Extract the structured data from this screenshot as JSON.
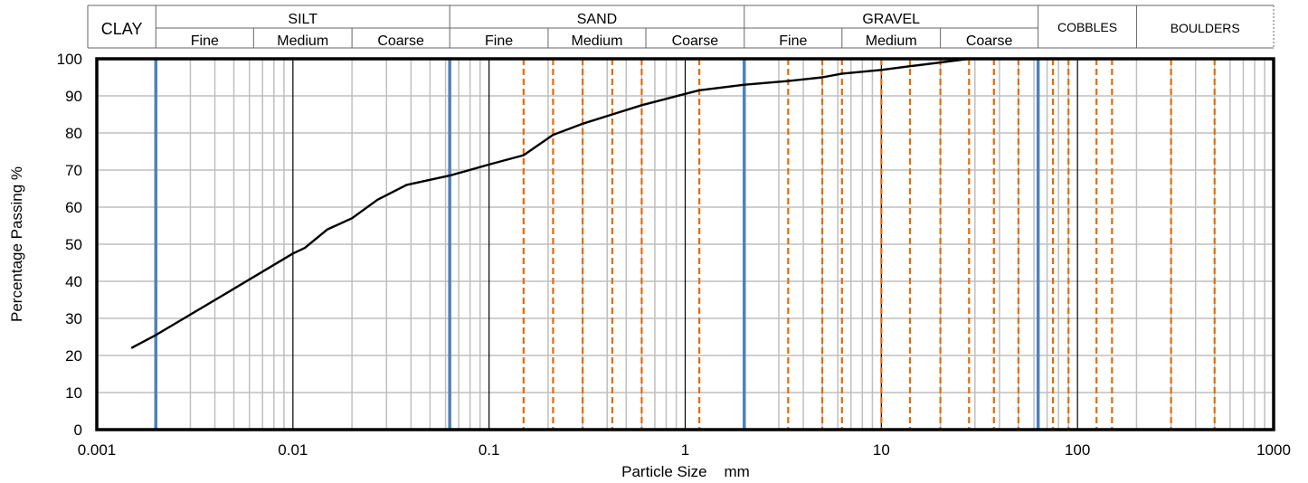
{
  "classification": {
    "clay": "CLAY",
    "silt": "SILT",
    "sand": "SAND",
    "gravel": "GRAVEL",
    "cobbles": "COBBLES",
    "boulders": "BOULDERS",
    "fine": "Fine",
    "medium": "Medium",
    "coarse": "Coarse"
  },
  "colors": {
    "curve": "#000000",
    "boundary": "#4f81bd",
    "sieve": "#e36c09",
    "grid": "#bfbfbf"
  },
  "chart_data": {
    "type": "line",
    "xlabel": "Particle Size    mm",
    "ylabel": "Percentage Passing  %",
    "xscale": "log",
    "xlim": [
      0.001,
      1000
    ],
    "ylim": [
      0,
      100
    ],
    "x_ticks": [
      "0.001",
      "0.01",
      "0.1",
      "1",
      "10",
      "100",
      "1000"
    ],
    "y_ticks": [
      "0",
      "10",
      "20",
      "30",
      "40",
      "50",
      "60",
      "70",
      "80",
      "90",
      "100"
    ],
    "grid": true,
    "series": [
      {
        "x": [
          0.0015,
          0.002,
          0.005,
          0.01,
          0.0115,
          0.015,
          0.02,
          0.027,
          0.038,
          0.063,
          0.1,
          0.15,
          0.212,
          0.3,
          0.425,
          0.6,
          1.18,
          2,
          3.35,
          5,
          6.3,
          10,
          14,
          20,
          28,
          37.5,
          50,
          63,
          75
        ],
        "y": [
          22,
          25.5,
          38,
          47.5,
          49,
          54,
          57,
          62,
          66,
          68.5,
          71.5,
          74,
          79.5,
          82.5,
          85,
          87.5,
          91.5,
          93,
          94,
          95,
          96,
          97,
          98,
          99,
          100,
          100,
          100,
          100,
          100
        ]
      }
    ],
    "boundary_lines": [
      0.002,
      0.063,
      2,
      63
    ],
    "sieve_lines": [
      0.063,
      0.15,
      0.212,
      0.3,
      0.425,
      0.6,
      1.18,
      3.35,
      5,
      6.3,
      10,
      14,
      20,
      28,
      37.5,
      50,
      63,
      75,
      90,
      125,
      150,
      300,
      500
    ]
  }
}
